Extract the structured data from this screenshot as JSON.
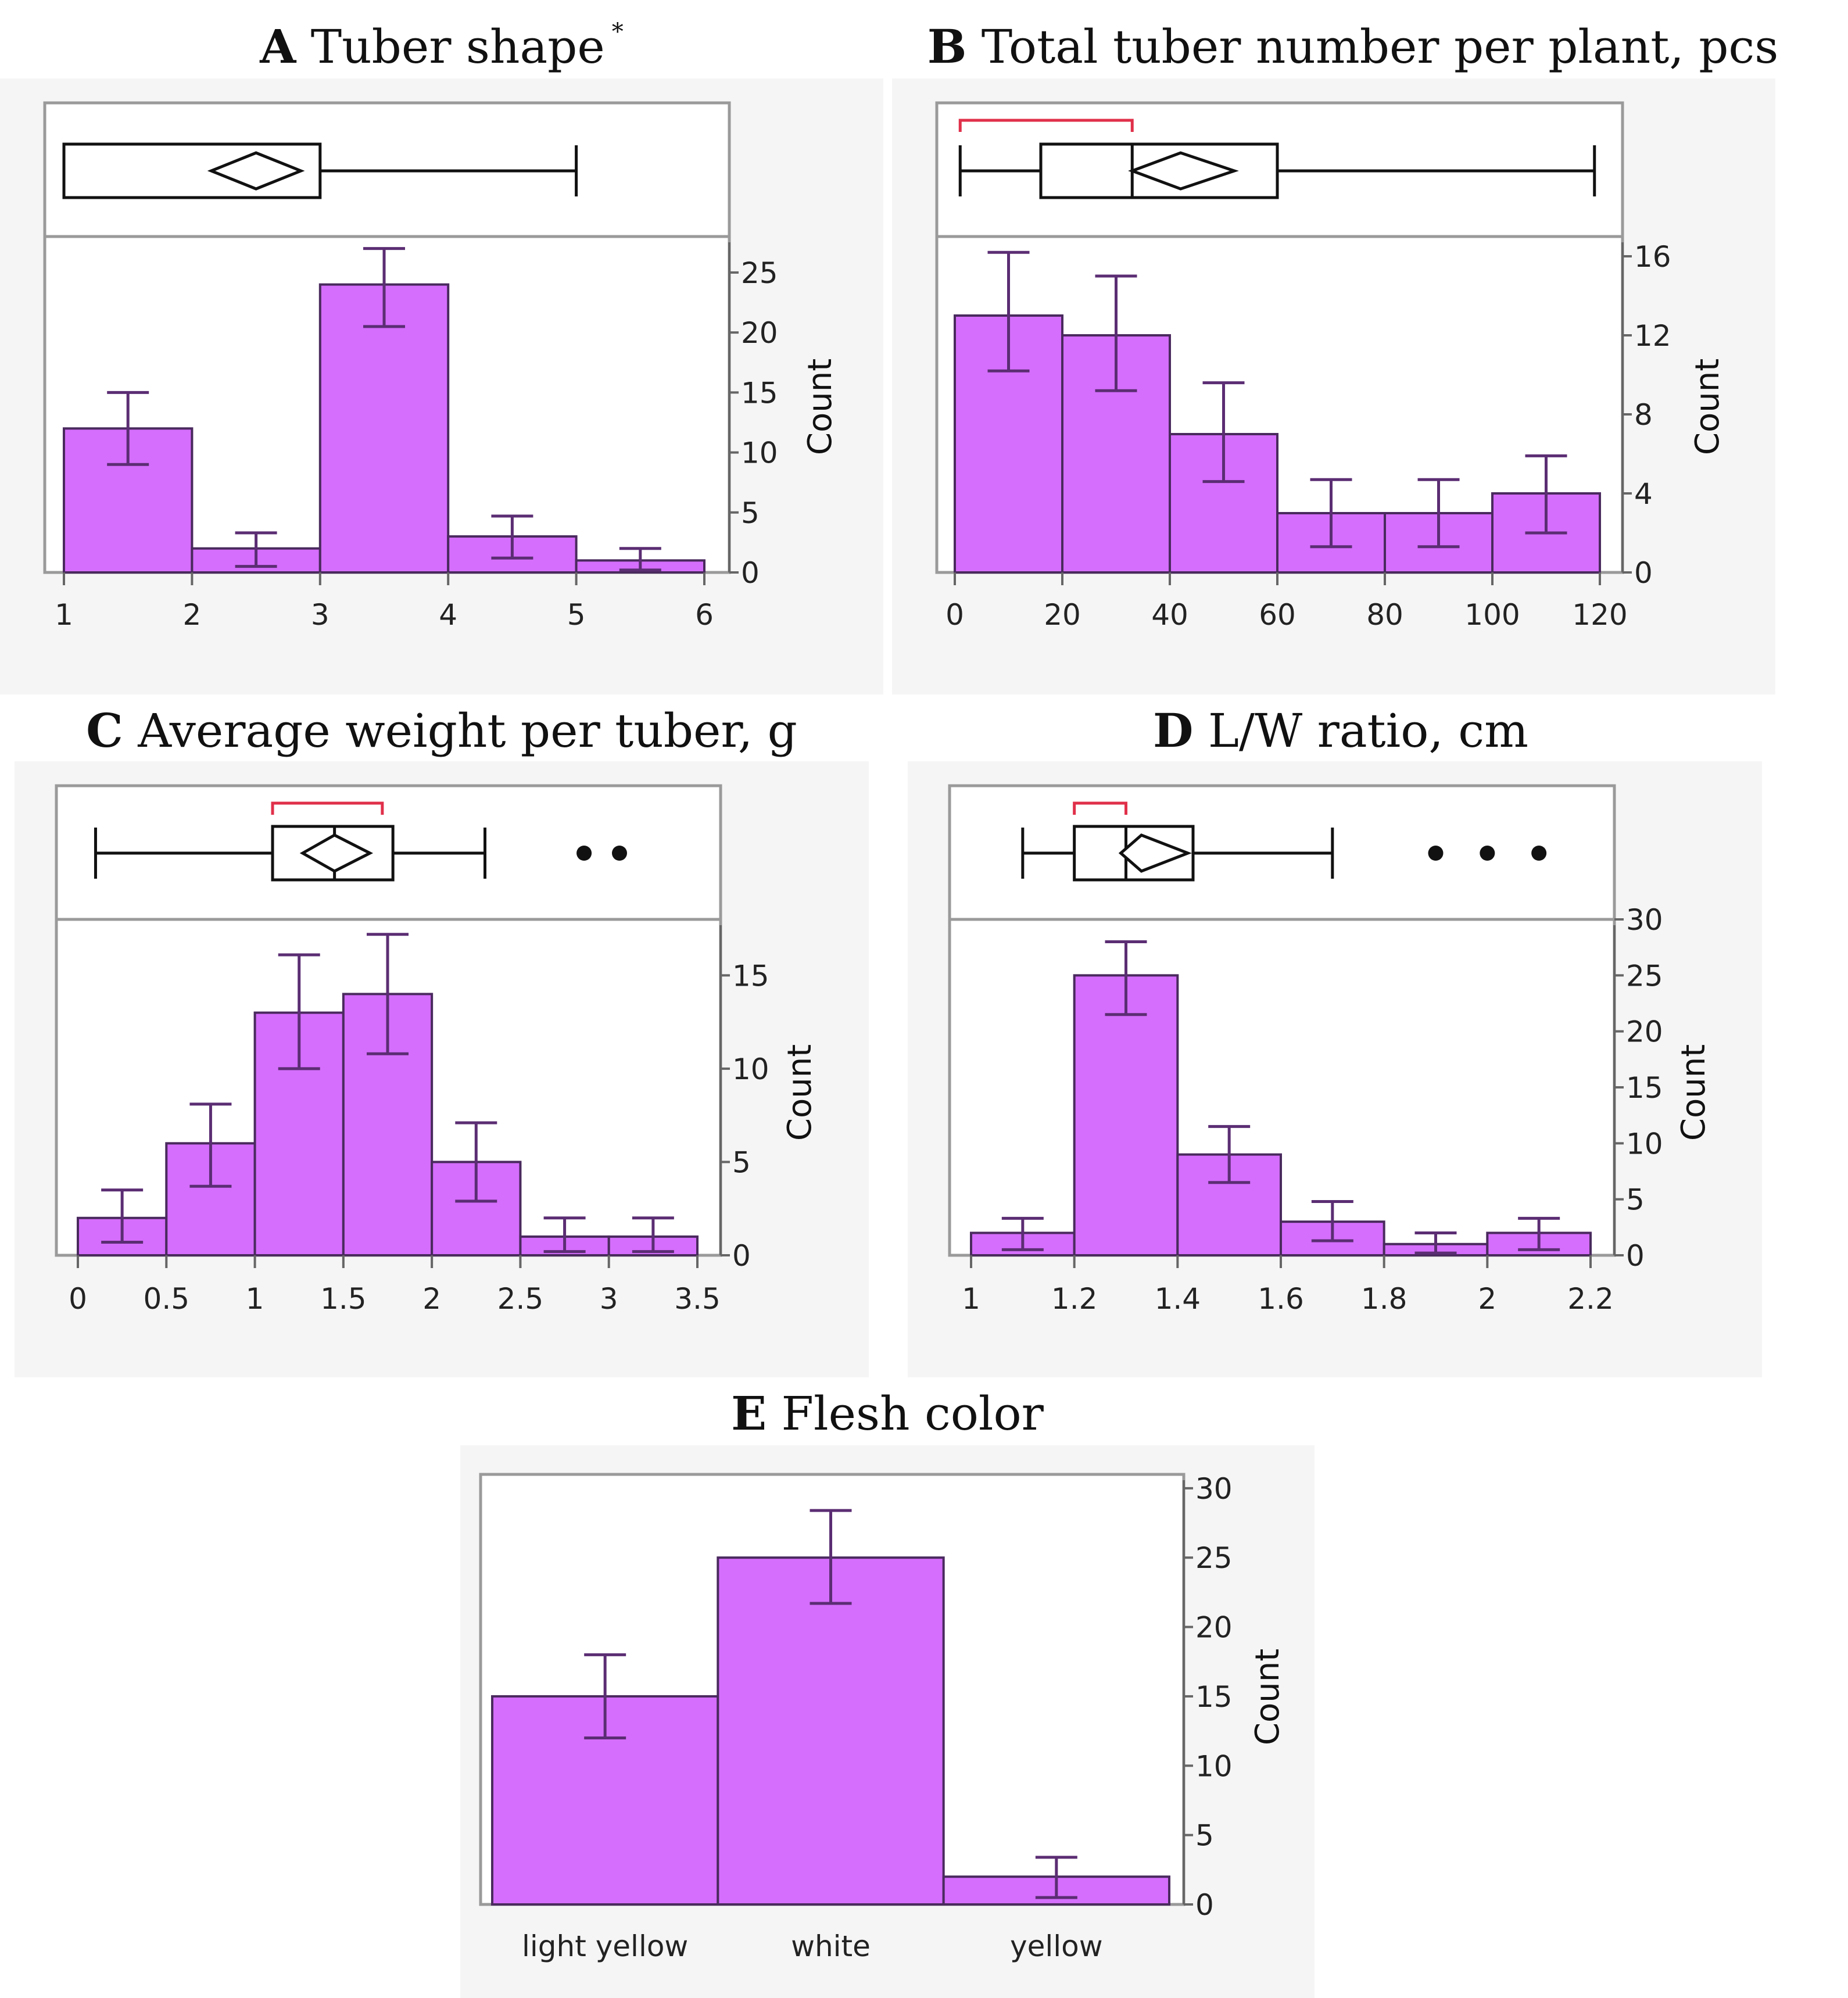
{
  "colors": {
    "bar": "#d56efc",
    "bar_edge": "#4a2a5e",
    "error_bar": "#5b2d73",
    "shortest_half": "#e0304a",
    "panel_bg": "#f5f5f5"
  },
  "chart_data": [
    {
      "id": "A",
      "type": "bar",
      "letter": "A",
      "title": "Tuber shape",
      "title_superscript": "*",
      "bins": [
        [
          1,
          2
        ],
        [
          2,
          3
        ],
        [
          3,
          4
        ],
        [
          4,
          5
        ],
        [
          5,
          6
        ]
      ],
      "values": [
        12,
        2,
        24,
        3,
        1
      ],
      "error_low": [
        9,
        0.5,
        20.5,
        1.2,
        0.2
      ],
      "error_high": [
        15,
        3.3,
        27,
        4.7,
        2
      ],
      "xlim": [
        1,
        6
      ],
      "xticks": [
        "1",
        "2",
        "3",
        "4",
        "5",
        "6"
      ],
      "ylim": [
        0,
        28
      ],
      "yticks": [
        "0",
        "5",
        "10",
        "15",
        "20",
        "25"
      ],
      "ytick_values": [
        0,
        5,
        10,
        15,
        20,
        25
      ],
      "ylabel": "Count",
      "boxplot": {
        "whisker_low": 1,
        "q1": 1,
        "median": 1,
        "q3": 3,
        "whisker_high": 5,
        "mean": 2.5,
        "mean_ci": [
          2.15,
          2.85
        ],
        "outliers": [],
        "shortest_half": null
      }
    },
    {
      "id": "B",
      "type": "bar",
      "letter": "B",
      "title": "Total tuber number per plant, pcs",
      "title_superscript": "",
      "bins": [
        [
          0,
          20
        ],
        [
          20,
          40
        ],
        [
          40,
          60
        ],
        [
          60,
          80
        ],
        [
          80,
          100
        ],
        [
          100,
          120
        ]
      ],
      "values": [
        13,
        12,
        7,
        3,
        3,
        4
      ],
      "error_low": [
        10.2,
        9.2,
        4.6,
        1.3,
        1.3,
        2
      ],
      "error_high": [
        16.2,
        15,
        9.6,
        4.7,
        4.7,
        5.9
      ],
      "xlim": [
        0,
        120
      ],
      "xticks": [
        "0",
        "20",
        "40",
        "60",
        "80",
        "100",
        "120"
      ],
      "ylim": [
        0,
        17
      ],
      "yticks": [
        "0",
        "4",
        "8",
        "12",
        "16"
      ],
      "ytick_values": [
        0,
        4,
        8,
        12,
        16
      ],
      "ylabel": "Count",
      "boxplot": {
        "whisker_low": 1,
        "q1": 16,
        "median": 33,
        "q3": 60,
        "whisker_high": 119,
        "mean": 42,
        "mean_ci": [
          33,
          52
        ],
        "outliers": [],
        "shortest_half": [
          1,
          33
        ]
      }
    },
    {
      "id": "C",
      "type": "bar",
      "letter": "C",
      "title": "Average weight per tuber, g",
      "title_superscript": "",
      "bins": [
        [
          0,
          0.5
        ],
        [
          0.5,
          1
        ],
        [
          1,
          1.5
        ],
        [
          1.5,
          2
        ],
        [
          2,
          2.5
        ],
        [
          2.5,
          3
        ],
        [
          3,
          3.5
        ]
      ],
      "values": [
        2,
        6,
        13,
        14,
        5,
        1,
        1
      ],
      "error_low": [
        0.7,
        3.7,
        10,
        10.8,
        2.9,
        0.2,
        0.2
      ],
      "error_high": [
        3.5,
        8.1,
        16.1,
        17.2,
        7.1,
        2,
        2
      ],
      "xlim": [
        0,
        3.5
      ],
      "xticks": [
        "0",
        "0.5",
        "1",
        "1.5",
        "2",
        "2.5",
        "3",
        "3.5"
      ],
      "ylim": [
        0,
        18
      ],
      "yticks": [
        "0",
        "5",
        "10",
        "15"
      ],
      "ytick_values": [
        0,
        5,
        10,
        15
      ],
      "ylabel": "Count",
      "boxplot": {
        "whisker_low": 0.1,
        "q1": 1.1,
        "median": 1.45,
        "q3": 1.78,
        "whisker_high": 2.3,
        "mean": 1.45,
        "mean_ci": [
          1.27,
          1.65
        ],
        "outliers": [
          2.86,
          3.06
        ],
        "shortest_half": [
          1.1,
          1.72
        ]
      }
    },
    {
      "id": "D",
      "type": "bar",
      "letter": "D",
      "title": "L/W ratio, cm",
      "title_superscript": "",
      "bins": [
        [
          1,
          1.2
        ],
        [
          1.2,
          1.4
        ],
        [
          1.4,
          1.6
        ],
        [
          1.6,
          1.8
        ],
        [
          1.8,
          2
        ],
        [
          2,
          2.2
        ]
      ],
      "values": [
        2,
        25,
        9,
        3,
        1,
        2
      ],
      "error_low": [
        0.5,
        21.5,
        6.5,
        1.3,
        0.2,
        0.5
      ],
      "error_high": [
        3.3,
        28,
        11.5,
        4.8,
        2,
        3.3
      ],
      "xlim": [
        1,
        2.2
      ],
      "xticks": [
        "1",
        "1.2",
        "1.4",
        "1.6",
        "1.8",
        "2",
        "2.2"
      ],
      "ylim": [
        0,
        30
      ],
      "yticks": [
        "0",
        "5",
        "10",
        "15",
        "20",
        "25",
        "30"
      ],
      "ytick_values": [
        0,
        5,
        10,
        15,
        20,
        25,
        30
      ],
      "ylabel": "Count",
      "boxplot": {
        "whisker_low": 1.1,
        "q1": 1.2,
        "median": 1.3,
        "q3": 1.43,
        "whisker_high": 1.7,
        "mean": 1.33,
        "mean_ci": [
          1.29,
          1.42
        ],
        "outliers": [
          1.9,
          2.0,
          2.1
        ],
        "shortest_half": [
          1.2,
          1.3
        ]
      }
    },
    {
      "id": "E",
      "type": "bar",
      "letter": "E",
      "title": "Flesh color",
      "title_superscript": "",
      "categories": [
        "light  yellow",
        "white",
        "yellow"
      ],
      "values": [
        15,
        25,
        2
      ],
      "error_low": [
        12,
        21.7,
        0.5
      ],
      "error_high": [
        18,
        28.4,
        3.4
      ],
      "ylim": [
        0,
        31
      ],
      "yticks": [
        "0",
        "5",
        "10",
        "15",
        "20",
        "25",
        "30"
      ],
      "ytick_values": [
        0,
        5,
        10,
        15,
        20,
        25,
        30
      ],
      "ylabel": "Count"
    }
  ]
}
